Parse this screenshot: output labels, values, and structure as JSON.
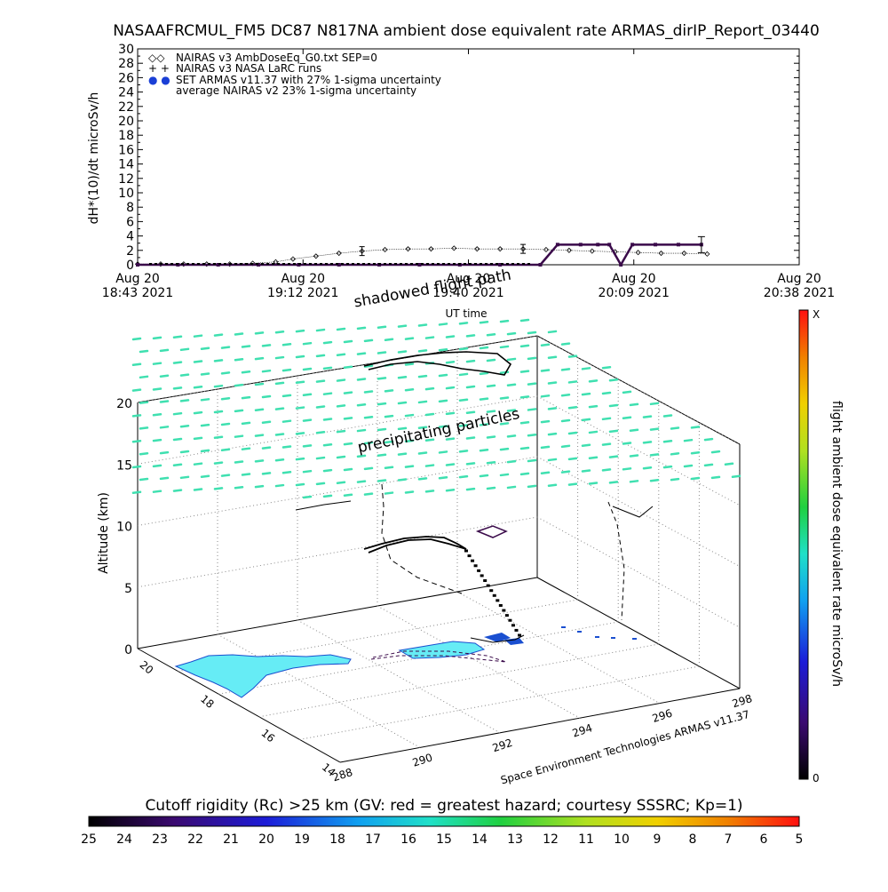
{
  "chart_data": [
    {
      "type": "scatter",
      "title": "NASAAFRCMUL_FM5 DC87 N817NA ambient dose equivalent rate ARMAS_dirIP_Report_03440",
      "ylabel": "dH*(10)/dt microSv/h",
      "xlabel": "UT time",
      "ylim": [
        0,
        30
      ],
      "yticks": [
        "0",
        "2",
        "4",
        "6",
        "8",
        "10",
        "12",
        "14",
        "16",
        "18",
        "20",
        "22",
        "24",
        "26",
        "28",
        "30"
      ],
      "xticks": [
        {
          "top": "Aug 20",
          "bottom": "18:43 2021"
        },
        {
          "top": "Aug 20",
          "bottom": "19:12 2021"
        },
        {
          "top": "Aug 20",
          "bottom": "19:40 2021"
        },
        {
          "top": "Aug 20",
          "bottom": "20:09 2021"
        },
        {
          "top": "Aug 20",
          "bottom": "20:38 2021"
        }
      ],
      "xlim_minutes_labels": [
        "18:43",
        "20:38"
      ],
      "legend": [
        {
          "symbol": "◇◇",
          "label": "NAIRAS v3 AmbDoseEq_G0.txt SEP=0"
        },
        {
          "symbol": "+ +",
          "label": "NAIRAS v3 NASA LaRC runs"
        },
        {
          "symbol": "● ●",
          "label": "SET ARMAS v11.37 with 27% 1-sigma uncertainty",
          "color": "#1a3fd6"
        },
        {
          "symbol": "",
          "label": "average NAIRAS v2 23% 1-sigma uncertainty"
        }
      ],
      "legend_position": "top-left",
      "series": [
        {
          "name": "NAIRAS v3 AmbDoseEq_G0.txt SEP=0",
          "marker": "diamond",
          "x": [
            "18:43",
            "18:47",
            "18:51",
            "18:55",
            "18:59",
            "19:03",
            "19:07",
            "19:10",
            "19:14",
            "19:18",
            "19:22",
            "19:26",
            "19:30",
            "19:34",
            "19:38",
            "19:42",
            "19:46",
            "19:50",
            "19:54",
            "19:58",
            "20:02",
            "20:06",
            "20:10",
            "20:14",
            "20:18",
            "20:22"
          ],
          "y": [
            0.1,
            0.1,
            0.1,
            0.1,
            0.1,
            0.2,
            0.4,
            0.8,
            1.2,
            1.6,
            1.9,
            2.1,
            2.2,
            2.2,
            2.3,
            2.2,
            2.2,
            2.2,
            2.1,
            2.0,
            1.9,
            1.8,
            1.7,
            1.6,
            1.6,
            1.5
          ]
        },
        {
          "name": "SET ARMAS v11.37 with 27% 1-sigma uncertainty",
          "marker": "filled-square",
          "color": "#3a0a4a",
          "x": [
            "18:43",
            "18:50",
            "18:57",
            "19:04",
            "19:11",
            "19:18",
            "19:25",
            "19:32",
            "19:39",
            "19:46",
            "19:53",
            "19:56",
            "20:00",
            "20:03",
            "20:05",
            "20:07",
            "20:09",
            "20:13",
            "20:17",
            "20:21"
          ],
          "y": [
            0,
            0,
            0,
            0,
            0,
            0,
            0,
            0,
            0,
            0,
            0,
            2.8,
            2.8,
            2.8,
            2.8,
            0,
            2.8,
            2.8,
            2.8,
            2.8
          ]
        }
      ]
    },
    {
      "type": "scatter",
      "subtitle": "shadowed flight path",
      "annotation": "precipitating particles",
      "zlabel": "Altitude (km)",
      "zticks": [
        "0",
        "5",
        "10",
        "15",
        "20"
      ],
      "xticks": [
        "288",
        "290",
        "292",
        "294",
        "296",
        "298"
      ],
      "yticks": [
        "20",
        "18",
        "16",
        "14"
      ],
      "credit": "Space Environment Technologies ARMAS v11.37",
      "colorbar_right": {
        "label": "flight ambient dose equivalent rate microSv/h",
        "top": "X",
        "bottom": "0"
      },
      "colorbar_bottom": {
        "label": "Cutoff rigidity (Rc) >25 km (GV: red = greatest hazard; courtesy SSSRC; Kp=1)",
        "ticks": [
          "25",
          "24",
          "23",
          "22",
          "21",
          "20",
          "19",
          "18",
          "17",
          "16",
          "15",
          "14",
          "13",
          "12",
          "11",
          "10",
          "9",
          "8",
          "7",
          "6",
          "5"
        ]
      }
    }
  ],
  "colors": {
    "particles": "#3fe0b0",
    "land": "#66ecf5",
    "land_outline": "#1a4fd0",
    "track": "#000000",
    "purple": "#3a0a4a"
  }
}
